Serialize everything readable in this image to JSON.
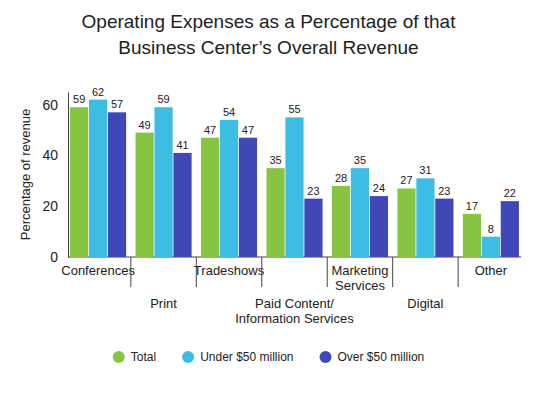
{
  "chart_data": {
    "type": "bar",
    "title": "Operating Expenses as a Percentage of that Business Center’s Overall Revenue",
    "y_label": "Percentage of revenue",
    "categories": [
      "Conferences",
      "Print",
      "Tradeshows",
      "Paid Content/\nInformation Services",
      "Marketing\nServices",
      "Digital",
      "Other"
    ],
    "series": [
      {
        "name": "Total",
        "color": "#86c441",
        "values": [
          59,
          49,
          47,
          35,
          28,
          27,
          17
        ]
      },
      {
        "name": "Under $50 million",
        "color": "#3dbde3",
        "values": [
          62,
          59,
          54,
          55,
          35,
          31,
          8
        ]
      },
      {
        "name": "Over $50 million",
        "color": "#4048b8",
        "values": [
          57,
          41,
          47,
          23,
          24,
          23,
          22
        ]
      }
    ],
    "ylim": [
      0,
      65
    ],
    "yticks": [
      0,
      20,
      40,
      60
    ],
    "grid": false,
    "data_labels": true,
    "legend": "bottom",
    "marker": "circle"
  }
}
